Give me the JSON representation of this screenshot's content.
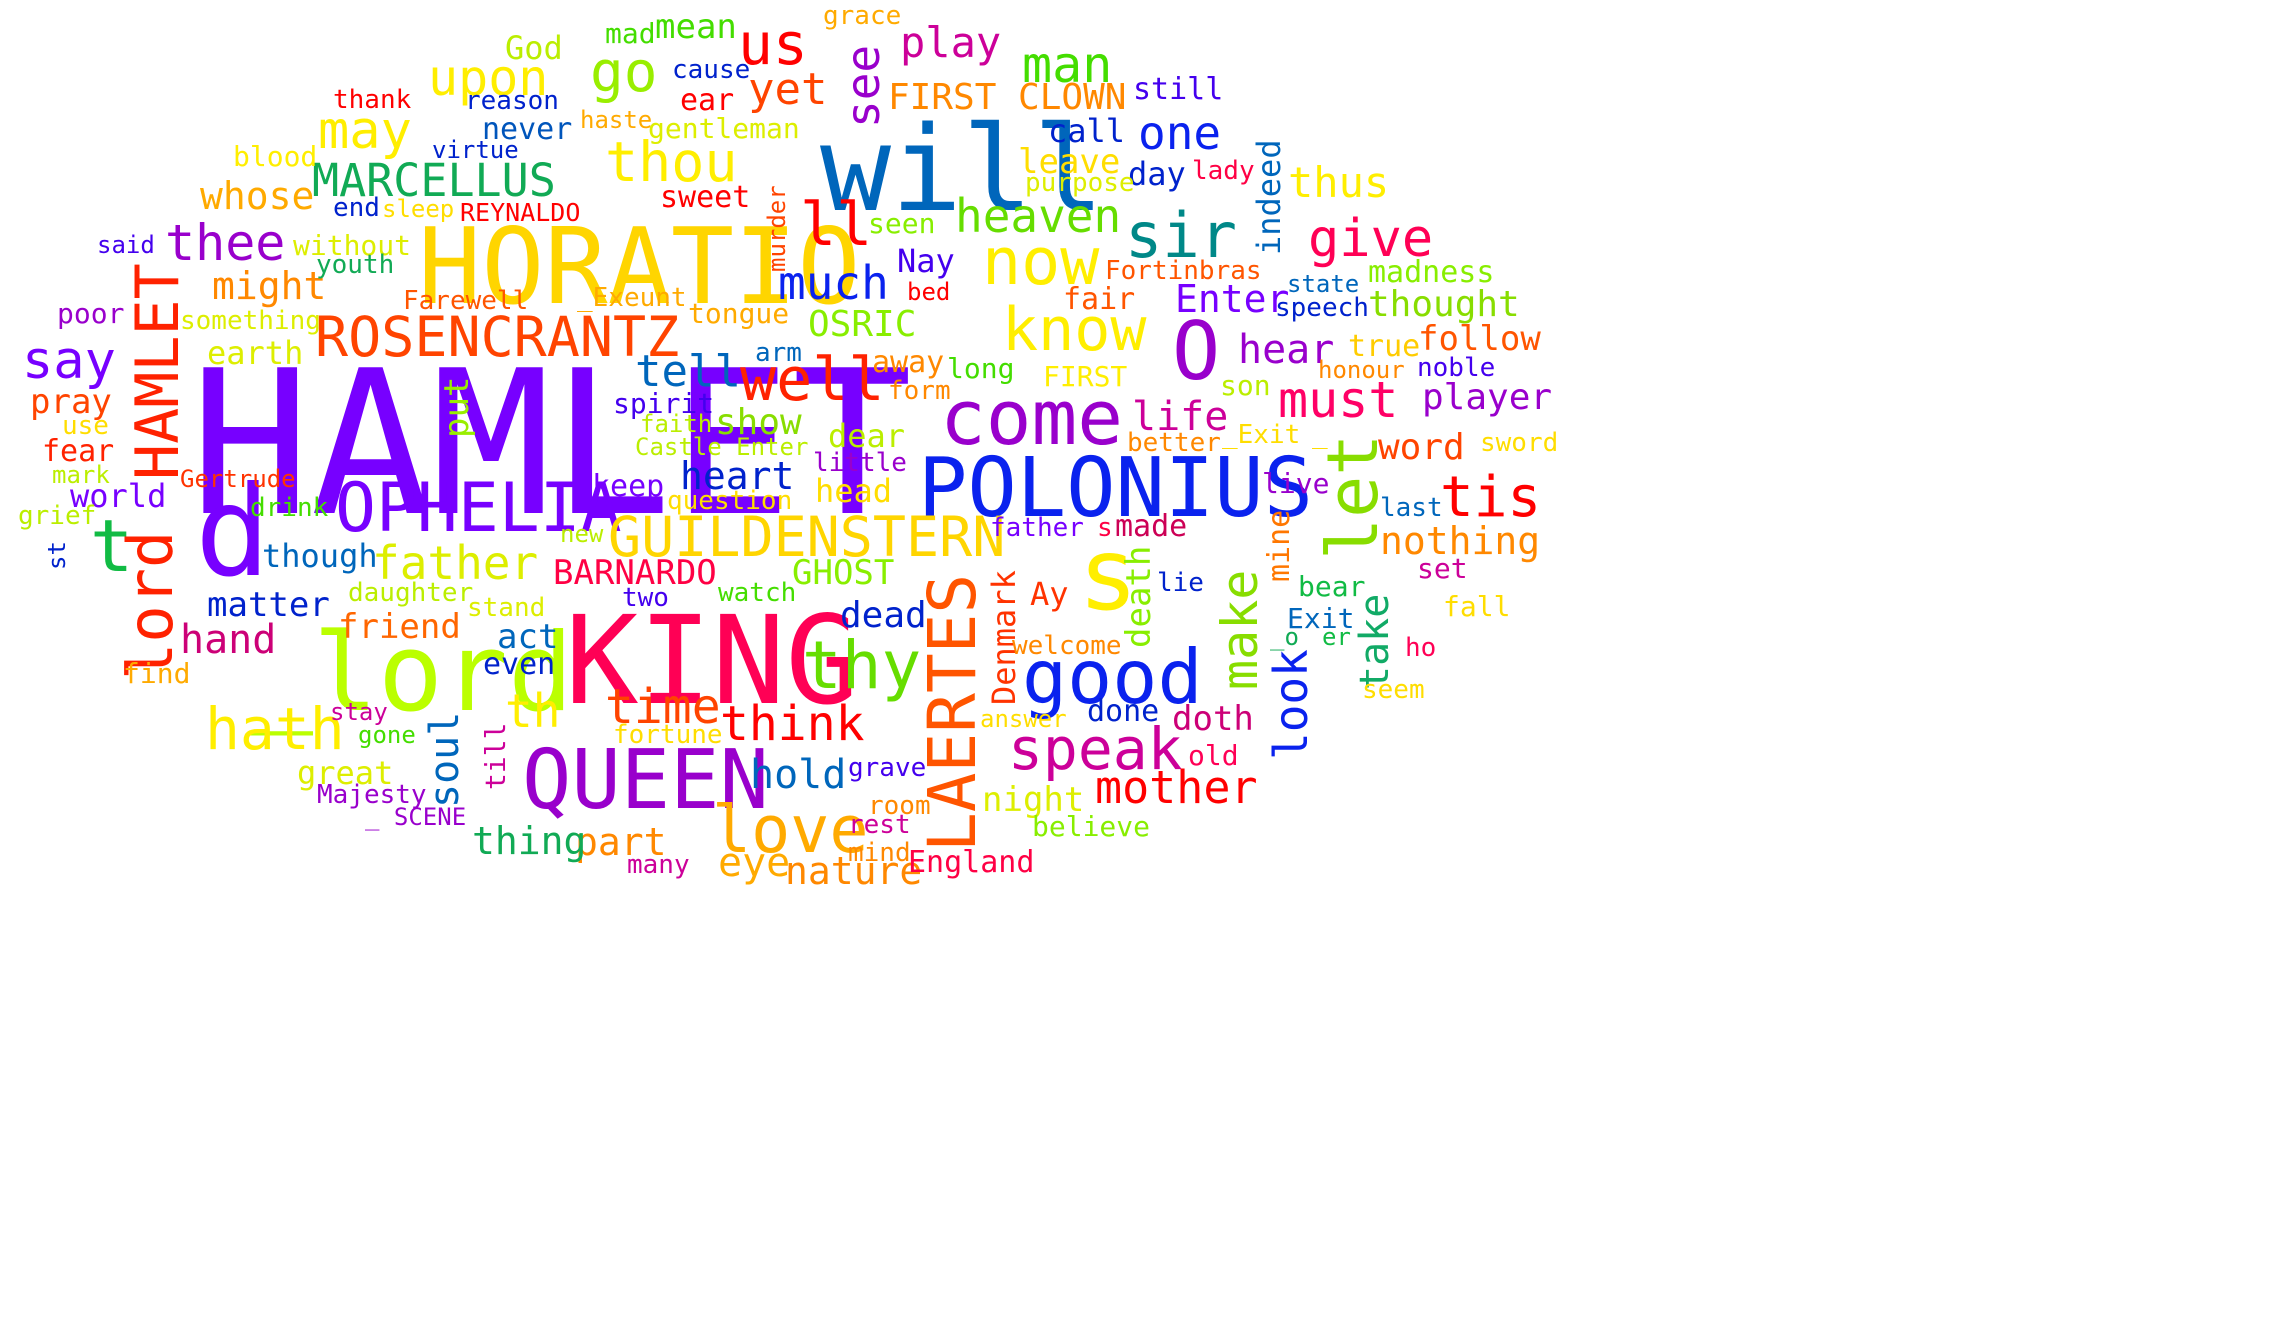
{
  "words": [
    {
      "text": "HAMLET",
      "color": "#7700ff"
    },
    {
      "text": "HORATIO",
      "color": "#ffd500"
    },
    {
      "text": "will",
      "color": "#0066bb"
    },
    {
      "text": "KING",
      "color": "#ff0055"
    },
    {
      "text": "POLONIUS",
      "color": "#0a22ee"
    },
    {
      "text": "_lord",
      "color": "#bbff00"
    },
    {
      "text": "QUEEN",
      "color": "#9900cc"
    },
    {
      "text": "come",
      "color": "#9900cc"
    },
    {
      "text": "OPHELIA",
      "color": "#7700ff"
    },
    {
      "text": "ROSENCRANTZ",
      "color": "#ff4400"
    },
    {
      "text": "GUILDENSTERN",
      "color": "#ffd500"
    },
    {
      "text": "good",
      "color": "#0a22ee"
    },
    {
      "text": "thy",
      "color": "#66dd00"
    },
    {
      "text": "love",
      "color": "#ffaa00"
    },
    {
      "text": "know",
      "color": "#ffee00"
    },
    {
      "text": "now",
      "color": "#ffee00"
    },
    {
      "text": "O",
      "color": "#9900cc"
    },
    {
      "text": "d",
      "color": "#7700ff"
    },
    {
      "text": "s",
      "color": "#ffee00"
    },
    {
      "text": "t",
      "color": "#11bb44"
    },
    {
      "text": "let",
      "color": "#88dd00"
    },
    {
      "text": "HAMLET",
      "color": "#ff2200"
    },
    {
      "text": "lord",
      "color": "#ff2200"
    },
    {
      "text": "LAERTES",
      "color": "#ff5500"
    },
    {
      "text": "well",
      "color": "#ff2200"
    },
    {
      "text": "speak",
      "color": "#cc0099"
    },
    {
      "text": "sir",
      "color": "#008888"
    },
    {
      "text": "hath",
      "color": "#ffee00"
    },
    {
      "text": "MARCELLUS",
      "color": "#11aa55"
    },
    {
      "text": "thou",
      "color": "#ffee00"
    },
    {
      "text": "upon",
      "color": "#ffee00"
    },
    {
      "text": "may",
      "color": "#ffee00"
    },
    {
      "text": "us",
      "color": "#ff0000"
    },
    {
      "text": "go",
      "color": "#99ee00"
    },
    {
      "text": "man",
      "color": "#44dd00"
    },
    {
      "text": "thee",
      "color": "#9900cc"
    },
    {
      "text": "say",
      "color": "#7700ff"
    },
    {
      "text": "make",
      "color": "#88dd00"
    },
    {
      "text": "mother",
      "color": "#ff0000"
    },
    {
      "text": "think",
      "color": "#ff0000"
    },
    {
      "text": "time",
      "color": "#ff4400"
    },
    {
      "text": "must",
      "color": "#ff0066"
    },
    {
      "text": "give",
      "color": "#ff0055"
    },
    {
      "text": "tis",
      "color": "#ff0000"
    },
    {
      "text": "heaven",
      "color": "#66dd00"
    },
    {
      "text": "much",
      "color": "#0a22ee"
    },
    {
      "text": "father",
      "color": "#ddee00"
    },
    {
      "text": "th",
      "color": "#ffee00"
    },
    {
      "text": "ll",
      "color": "#ff0000"
    },
    {
      "text": "one",
      "color": "#0a22ee"
    },
    {
      "text": "hand",
      "color": "#cc0077"
    },
    {
      "text": "look",
      "color": "#0a22ee"
    },
    {
      "text": "see",
      "color": "#9900cc"
    },
    {
      "text": "play",
      "color": "#cc0099"
    },
    {
      "text": "yet",
      "color": "#ff4400"
    },
    {
      "text": "tell",
      "color": "#0066bb"
    },
    {
      "text": "hold",
      "color": "#0066bb"
    },
    {
      "text": "nothing",
      "color": "#ff8800"
    },
    {
      "text": "take",
      "color": "#11aa66"
    },
    {
      "text": "hear",
      "color": "#9900cc"
    },
    {
      "text": "life",
      "color": "#cc0099"
    },
    {
      "text": "heart",
      "color": "#0022cc"
    },
    {
      "text": "thus",
      "color": "#ffee00"
    },
    {
      "text": "might",
      "color": "#ff8800"
    },
    {
      "text": "whose",
      "color": "#ffaa00"
    },
    {
      "text": "soul",
      "color": "#0066bb"
    },
    {
      "text": "eye",
      "color": "#ffaa00"
    },
    {
      "text": "nature",
      "color": "#ff8800"
    },
    {
      "text": "part",
      "color": "#ff8800"
    },
    {
      "text": "thing",
      "color": "#11aa55"
    },
    {
      "text": "OSRIC",
      "color": "#88ee00"
    },
    {
      "text": "BARNARDO",
      "color": "#ff0044"
    },
    {
      "text": "GHOST",
      "color": "#88ee00"
    },
    {
      "text": "FIRST CLOWN",
      "color": "#ff8800"
    },
    {
      "text": "Enter",
      "color": "#7700ff"
    },
    {
      "text": "player",
      "color": "#9900cc"
    },
    {
      "text": "word",
      "color": "#ff4400"
    },
    {
      "text": "follow",
      "color": "#ff5500"
    },
    {
      "text": "thought",
      "color": "#88dd00"
    },
    {
      "text": "show",
      "color": "#88dd00"
    },
    {
      "text": "dead",
      "color": "#0022cc"
    },
    {
      "text": "act",
      "color": "#0066bb"
    },
    {
      "text": "friend",
      "color": "#ff6600"
    },
    {
      "text": "matter",
      "color": "#0022cc"
    },
    {
      "text": "pray",
      "color": "#ff4400"
    },
    {
      "text": "death",
      "color": "#88ee00"
    },
    {
      "text": "doth",
      "color": "#cc0077"
    },
    {
      "text": "night",
      "color": "#ddee00"
    },
    {
      "text": "mean",
      "color": "#44dd00"
    },
    {
      "text": "God",
      "color": "#bbee00"
    },
    {
      "text": "call",
      "color": "#0022cc"
    },
    {
      "text": "day",
      "color": "#0022cc"
    },
    {
      "text": "leave",
      "color": "#ffdd00"
    },
    {
      "text": "keep",
      "color": "#7700ff"
    },
    {
      "text": "head",
      "color": "#ffdd00"
    },
    {
      "text": "dear",
      "color": "#bbee00"
    },
    {
      "text": "put",
      "color": "#99ee00"
    },
    {
      "text": "world",
      "color": "#7700ff"
    },
    {
      "text": "though",
      "color": "#0066bb"
    },
    {
      "text": "earth",
      "color": "#ddee00"
    },
    {
      "text": "great",
      "color": "#ddee00"
    },
    {
      "text": "indeed",
      "color": "#0066bb"
    },
    {
      "text": "Nay",
      "color": "#4400ee"
    },
    {
      "text": "away",
      "color": "#ff8800"
    },
    {
      "text": "fair",
      "color": "#ff5500"
    },
    {
      "text": "Denmark",
      "color": "#ff3300"
    },
    {
      "text": "England",
      "color": "#ff0044"
    },
    {
      "text": "Ay",
      "color": "#ff3300"
    },
    {
      "text": "even",
      "color": "#0022cc"
    },
    {
      "text": "done",
      "color": "#0022cc"
    },
    {
      "text": "mine",
      "color": "#ff7700"
    },
    {
      "text": "madness",
      "color": "#88ee00"
    },
    {
      "text": "true",
      "color": "#ffcc00"
    },
    {
      "text": "made",
      "color": "#cc0055"
    },
    {
      "text": "sweet",
      "color": "#ff0000"
    },
    {
      "text": "ear",
      "color": "#ff0000"
    },
    {
      "text": "never",
      "color": "#0055bb"
    },
    {
      "text": "still",
      "color": "#4400ee"
    },
    {
      "text": "REYNALDO",
      "color": "#ff0000"
    },
    {
      "text": "Fortinbras",
      "color": "#ff5500"
    },
    {
      "text": "Farewell",
      "color": "#ff5500"
    },
    {
      "text": "_Exeunt",
      "color": "#ffaa00"
    },
    {
      "text": "tongue",
      "color": "#ffaa00"
    },
    {
      "text": "something",
      "color": "#ddee00"
    },
    {
      "text": "without",
      "color": "#ddee00"
    },
    {
      "text": "youth",
      "color": "#11aa55"
    },
    {
      "text": "said",
      "color": "#4400ee"
    },
    {
      "text": "poor",
      "color": "#9900cc"
    },
    {
      "text": "spirit",
      "color": "#4400ee"
    },
    {
      "text": "arm",
      "color": "#0066bb"
    },
    {
      "text": "form",
      "color": "#ff8800"
    },
    {
      "text": "long",
      "color": "#44dd00"
    },
    {
      "text": "FIRST",
      "color": "#ffee00"
    },
    {
      "text": "son",
      "color": "#bbee00"
    },
    {
      "text": "honour",
      "color": "#ff8800"
    },
    {
      "text": "noble",
      "color": "#4400ee"
    },
    {
      "text": "better",
      "color": "#ff8800"
    },
    {
      "text": "_Exit",
      "color": "#ffdd00"
    },
    {
      "text": "_",
      "color": "#ffdd00"
    },
    {
      "text": "sword",
      "color": "#ffdd00"
    },
    {
      "text": "live",
      "color": "#9900cc"
    },
    {
      "text": "last",
      "color": "#0066bb"
    },
    {
      "text": "set",
      "color": "#cc0099"
    },
    {
      "text": "fall",
      "color": "#ffdd00"
    },
    {
      "text": "bear",
      "color": "#11bb44"
    },
    {
      "text": "lie",
      "color": "#0022cc"
    },
    {
      "text": "Exit",
      "color": "#0066bb"
    },
    {
      "text": "_o",
      "color": "#11aa55"
    },
    {
      "text": "er",
      "color": "#11bb44"
    },
    {
      "text": "ho",
      "color": "#ff0055"
    },
    {
      "text": "seem",
      "color": "#ffdd00"
    },
    {
      "text": "welcome",
      "color": "#ff8800"
    },
    {
      "text": "answer",
      "color": "#ffdd00"
    },
    {
      "text": "grave",
      "color": "#4400ee"
    },
    {
      "text": "old",
      "color": "#ff0055"
    },
    {
      "text": "believe",
      "color": "#88ee00"
    },
    {
      "text": "room",
      "color": "#ff8800"
    },
    {
      "text": "rest",
      "color": "#cc0099"
    },
    {
      "text": "mind",
      "color": "#ff8800"
    },
    {
      "text": "many",
      "color": "#cc0099"
    },
    {
      "text": "fortune",
      "color": "#ffdd00"
    },
    {
      "text": "gone",
      "color": "#44dd00"
    },
    {
      "text": "stay",
      "color": "#cc0099"
    },
    {
      "text": "Majesty",
      "color": "#9900cc"
    },
    {
      "text": "_ SCENE",
      "color": "#9900cc"
    },
    {
      "text": "till",
      "color": "#cc0099"
    },
    {
      "text": "two",
      "color": "#4400ee"
    },
    {
      "text": "watch",
      "color": "#44dd00"
    },
    {
      "text": "stand",
      "color": "#ddee00"
    },
    {
      "text": "daughter",
      "color": "#bbee00"
    },
    {
      "text": "new",
      "color": "#bbee00"
    },
    {
      "text": "drink",
      "color": "#44dd00"
    },
    {
      "text": "question",
      "color": "#ffdd00"
    },
    {
      "text": "little",
      "color": "#9900cc"
    },
    {
      "text": "Castle Enter",
      "color": "#bbee00"
    },
    {
      "text": "faith",
      "color": "#bbee00"
    },
    {
      "text": "Gertrude",
      "color": "#ff3300"
    },
    {
      "text": "mark",
      "color": "#bbee00"
    },
    {
      "text": "use",
      "color": "#ffdd00"
    },
    {
      "text": "fear",
      "color": "#ff2200"
    },
    {
      "text": "grief",
      "color": "#bbee00"
    },
    {
      "text": "st",
      "color": "#0022cc"
    },
    {
      "text": "find",
      "color": "#ffaa00"
    },
    {
      "text": "blood",
      "color": "#ffee00"
    },
    {
      "text": "virtue",
      "color": "#0022cc"
    },
    {
      "text": "end",
      "color": "#0022cc"
    },
    {
      "text": "sleep",
      "color": "#ffdd00"
    },
    {
      "text": "thank",
      "color": "#ff0000"
    },
    {
      "text": "reason",
      "color": "#0022cc"
    },
    {
      "text": "cause",
      "color": "#0022cc"
    },
    {
      "text": "haste",
      "color": "#ffaa00"
    },
    {
      "text": "gentleman",
      "color": "#ddee00"
    },
    {
      "text": "mad",
      "color": "#44dd00"
    },
    {
      "text": "grace",
      "color": "#ffaa00"
    },
    {
      "text": "murder",
      "color": "#ff4400"
    },
    {
      "text": "seen",
      "color": "#88ee00"
    },
    {
      "text": "bed",
      "color": "#ff0000"
    },
    {
      "text": "purpose",
      "color": "#ddee00"
    },
    {
      "text": "lady",
      "color": "#ff0044"
    },
    {
      "text": "state",
      "color": "#0066bb"
    },
    {
      "text": "speech",
      "color": "#0022cc"
    },
    {
      "text": "father",
      "color": "#7700ff"
    },
    {
      "text": "s",
      "color": "#ff0044"
    }
  ]
}
